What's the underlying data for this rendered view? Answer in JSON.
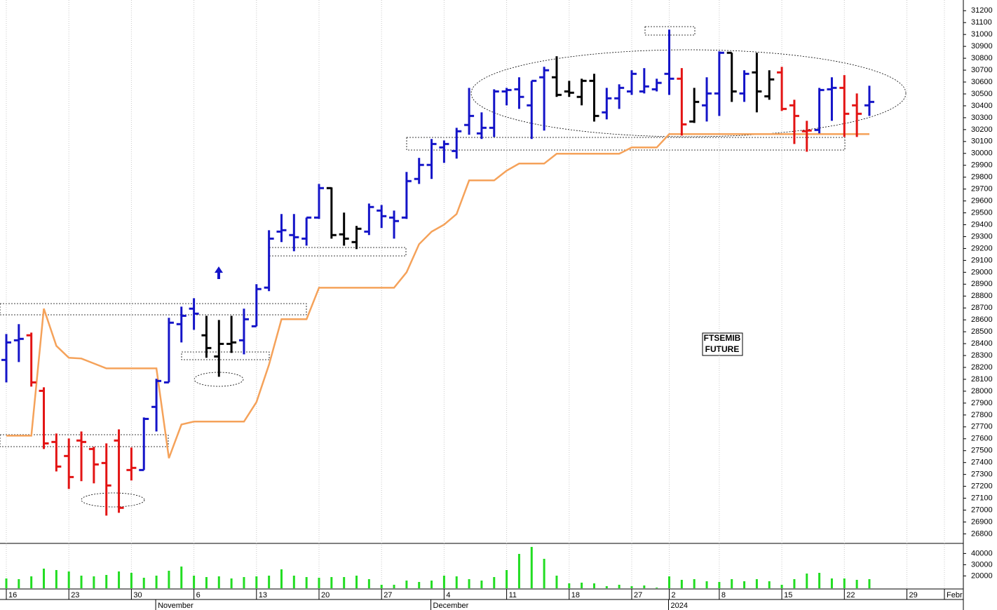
{
  "chart_data": {
    "type": "ohlc",
    "grid": true,
    "annotation": [
      "FTSEMIB",
      "FUTURE"
    ],
    "categories": [
      "16",
      null,
      null,
      null,
      null,
      "23",
      null,
      null,
      null,
      null,
      "30",
      null,
      null,
      null,
      null,
      "6",
      null,
      null,
      null,
      null,
      "13",
      null,
      null,
      null,
      null,
      "20",
      null,
      null,
      null,
      null,
      "27",
      null,
      null,
      null,
      null,
      "4",
      null,
      null,
      null,
      null,
      "11",
      null,
      null,
      null,
      null,
      "18",
      null,
      null,
      null,
      null,
      "27",
      null,
      null,
      "2",
      null,
      null,
      null,
      "8",
      null,
      null,
      null,
      null,
      "15",
      null,
      null,
      null,
      null,
      "22",
      null,
      null,
      null,
      null,
      "29",
      null,
      null,
      "Febr"
    ],
    "months": [
      null,
      null,
      null,
      null,
      null,
      null,
      null,
      null,
      null,
      null,
      null,
      null,
      "November",
      null,
      null,
      null,
      null,
      null,
      null,
      null,
      null,
      null,
      null,
      null,
      null,
      null,
      null,
      null,
      null,
      null,
      null,
      null,
      null,
      null,
      "December",
      null,
      null,
      null,
      null,
      null,
      null,
      null,
      null,
      null,
      null,
      null,
      null,
      null,
      null,
      null,
      null,
      null,
      null,
      "2024",
      null,
      null,
      null,
      null,
      null,
      null,
      null,
      null,
      null,
      null,
      null,
      null,
      null,
      null,
      null,
      null,
      null,
      null,
      null,
      null
    ],
    "open": [
      28263,
      28428,
      28470,
      28003,
      27573,
      27455,
      27585,
      27514,
      27396,
      27585,
      27337,
      27337,
      27868,
      28074,
      28564,
      28694,
      28470,
      28292,
      28398,
      28428,
      28546,
      28871,
      29342,
      29313,
      29283,
      29460,
      29708,
      29319,
      29254,
      29342,
      29519,
      29460,
      29460,
      29785,
      29903,
      30050,
      30020,
      30239,
      30168,
      30215,
      30521,
      30539,
      30404,
      30640,
      30640,
      30521,
      30475,
      30610,
      30345,
      30463,
      30521,
      30521,
      30539,
      30669,
      30628,
      30268,
      30404,
      30504,
      30846,
      30504,
      30681,
      30480,
      30681,
      30404,
      30186,
      30197,
      30539,
      30551,
      30404,
      30404,
      null,
      null,
      null,
      null,
      null,
      null
    ],
    "high": [
      28481,
      28564,
      28493,
      28033,
      27644,
      27602,
      27661,
      27532,
      27561,
      27679,
      27526,
      27779,
      28104,
      28617,
      28711,
      28782,
      28634,
      28599,
      28634,
      28694,
      28900,
      29354,
      29490,
      29490,
      29460,
      29743,
      29714,
      29502,
      29390,
      29578,
      29566,
      29519,
      29844,
      29962,
      30121,
      30109,
      30215,
      30551,
      30345,
      30539,
      30551,
      30640,
      30610,
      30728,
      30817,
      30610,
      30628,
      30669,
      30551,
      30581,
      30699,
      30717,
      30628,
      31041,
      30717,
      30551,
      30640,
      30858,
      30846,
      30699,
      30846,
      30699,
      30728,
      30451,
      30274,
      30551,
      30640,
      30658,
      30504,
      30569,
      null,
      null,
      null,
      null,
      null,
      null
    ],
    "low": [
      28074,
      28245,
      28039,
      27514,
      27325,
      27178,
      27243,
      27225,
      26954,
      26977,
      27249,
      27337,
      27661,
      28074,
      28410,
      28516,
      28281,
      28121,
      28322,
      28310,
      28546,
      28841,
      29254,
      29177,
      29224,
      29449,
      29283,
      29224,
      29195,
      29313,
      29372,
      29283,
      29449,
      29743,
      29785,
      29920,
      29956,
      30156,
      30121,
      30138,
      30404,
      30374,
      30121,
      30192,
      30475,
      30475,
      30404,
      30268,
      30286,
      30374,
      30492,
      30504,
      30521,
      30492,
      30150,
      30256,
      30268,
      30315,
      30433,
      30433,
      30345,
      30451,
      30357,
      30079,
      30014,
      30168,
      30274,
      30138,
      30138,
      30315,
      null,
      null,
      null,
      null,
      null,
      null
    ],
    "close": [
      28410,
      28440,
      28074,
      27561,
      27366,
      27278,
      27573,
      27384,
      27207,
      27019,
      27355,
      27767,
      28086,
      28576,
      28634,
      28652,
      28363,
      28398,
      28410,
      28605,
      28859,
      29283,
      29354,
      29295,
      29460,
      29708,
      29313,
      29283,
      29366,
      29549,
      29472,
      29431,
      29767,
      29903,
      30079,
      30079,
      30186,
      30315,
      30215,
      30521,
      30533,
      30475,
      30610,
      30699,
      30492,
      30510,
      30610,
      30315,
      30463,
      30551,
      30669,
      30563,
      30593,
      30628,
      30244,
      30433,
      30504,
      30846,
      30521,
      30669,
      30521,
      30622,
      30374,
      30315,
      30192,
      30533,
      30551,
      30333,
      30333,
      30433,
      null,
      null,
      null,
      null,
      null,
      null
    ],
    "bar_colors": [
      "#1414c8",
      "#1414c8",
      "#e31414",
      "#e31414",
      "#e31414",
      "#e31414",
      "#e31414",
      "#e31414",
      "#e31414",
      "#e31414",
      "#e31414",
      "#1414c8",
      "#1414c8",
      "#1414c8",
      "#1414c8",
      "#1414c8",
      "#000000",
      "#000000",
      "#000000",
      "#1414c8",
      "#1414c8",
      "#1414c8",
      "#1414c8",
      "#1414c8",
      "#1414c8",
      "#1414c8",
      "#000000",
      "#000000",
      "#000000",
      "#1414c8",
      "#1414c8",
      "#1414c8",
      "#1414c8",
      "#1414c8",
      "#1414c8",
      "#1414c8",
      "#1414c8",
      "#1414c8",
      "#1414c8",
      "#1414c8",
      "#1414c8",
      "#1414c8",
      "#1414c8",
      "#1414c8",
      "#000000",
      "#000000",
      "#000000",
      "#000000",
      "#1414c8",
      "#1414c8",
      "#1414c8",
      "#1414c8",
      "#1414c8",
      "#1414c8",
      "#e31414",
      "#000000",
      "#1414c8",
      "#1414c8",
      "#000000",
      "#1414c8",
      "#000000",
      "#000000",
      "#e31414",
      "#e31414",
      "#e31414",
      "#1414c8",
      "#1414c8",
      "#e31414",
      "#e31414",
      "#1414c8",
      null,
      null,
      null,
      null,
      null,
      null
    ],
    "stop_line": {
      "color": "#f5a25a",
      "values": [
        27626,
        27626,
        27626,
        28694,
        28381,
        28281,
        28275,
        28233,
        28192,
        28192,
        28192,
        28192,
        28192,
        27437,
        27720,
        27744,
        27744,
        27744,
        27744,
        27744,
        27909,
        28222,
        28605,
        28605,
        28605,
        28870,
        28870,
        28870,
        28870,
        28870,
        28870,
        28870,
        29000,
        29236,
        29342,
        29401,
        29490,
        29773,
        29773,
        29773,
        29855,
        29914,
        29914,
        29914,
        29997,
        29997,
        29997,
        29997,
        29997,
        29997,
        30050,
        30050,
        30050,
        30162,
        30162,
        30162,
        30162,
        30162,
        30162,
        30162,
        30162,
        30162,
        30162,
        30162,
        30162,
        30162,
        30162,
        30162,
        30162,
        30162,
        null,
        null,
        null,
        null,
        null,
        null
      ]
    },
    "ylim": [
      26720,
      31290
    ],
    "yticks": [
      26800,
      26900,
      27000,
      27100,
      27200,
      27300,
      27400,
      27500,
      27600,
      27700,
      27800,
      27900,
      28000,
      28100,
      28200,
      28300,
      28400,
      28500,
      28600,
      28700,
      28800,
      28900,
      29000,
      29100,
      29200,
      29300,
      29400,
      29500,
      29600,
      29700,
      29800,
      29900,
      30000,
      30100,
      30200,
      30300,
      30400,
      30500,
      30600,
      30700,
      30800,
      30900,
      31000,
      31100,
      31200
    ],
    "volume": {
      "type": "bar",
      "color": "#22dd22",
      "ylim": [
        9000,
        47000
      ],
      "yticks": [
        20000,
        30000,
        40000
      ],
      "values": [
        17750,
        17125,
        19625,
        26500,
        25250,
        24000,
        20250,
        19625,
        20875,
        24000,
        22750,
        18375,
        20250,
        24625,
        28375,
        20250,
        19000,
        19625,
        17750,
        19000,
        19625,
        20250,
        25875,
        20250,
        19000,
        18375,
        19000,
        19000,
        20250,
        17125,
        12125,
        12125,
        15875,
        14625,
        15875,
        20250,
        19625,
        17125,
        15875,
        19000,
        25250,
        39625,
        45875,
        35250,
        20250,
        13375,
        14000,
        13375,
        10875,
        12125,
        10875,
        11500,
        9625,
        19625,
        16500,
        17125,
        15250,
        14625,
        17125,
        15250,
        17125,
        15250,
        12125,
        17125,
        22125,
        22750,
        17750,
        17750,
        16500,
        17125,
        null,
        null,
        null,
        null,
        null,
        null
      ]
    }
  }
}
